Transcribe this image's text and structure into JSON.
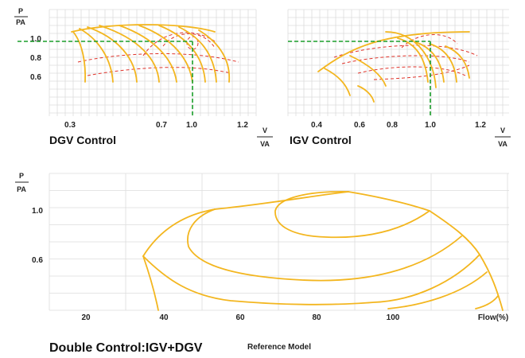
{
  "chart_data": [
    {
      "type": "line",
      "id": "dgv",
      "title": "DGV Control",
      "ylabel_num": "P",
      "ylabel_den": "PA",
      "xlabel_num": "V",
      "xlabel_den": "VA",
      "x_ticks": [
        "0.3",
        "0.7",
        "1.0",
        "1.2"
      ],
      "y_ticks": [
        "1.0",
        "0.8",
        "0.6"
      ],
      "reference_point": {
        "x": 1.0,
        "y": 0.96
      }
    },
    {
      "type": "line",
      "id": "igv",
      "title": "IGV Control",
      "xlabel_num": "V",
      "xlabel_den": "VA",
      "x_ticks": [
        "0.4",
        "0.6",
        "0.8",
        "1.0",
        "1.2"
      ],
      "reference_point": {
        "x": 1.0,
        "y": 0.96
      }
    },
    {
      "type": "line",
      "id": "double",
      "title": "Double Control:IGV+DGV",
      "subtitle": "Reference Model",
      "ylabel_num": "P",
      "ylabel_den": "PA",
      "xlabel": "Flow(%)",
      "x_ticks": [
        "20",
        "40",
        "60",
        "80",
        "100"
      ],
      "y_ticks": [
        "1.0",
        "0.6"
      ]
    }
  ],
  "colors": {
    "curve": "#f3b61f",
    "efficiency": "#e0342b",
    "reference": "#1a9e2a",
    "grid": "#dcdcdc"
  }
}
